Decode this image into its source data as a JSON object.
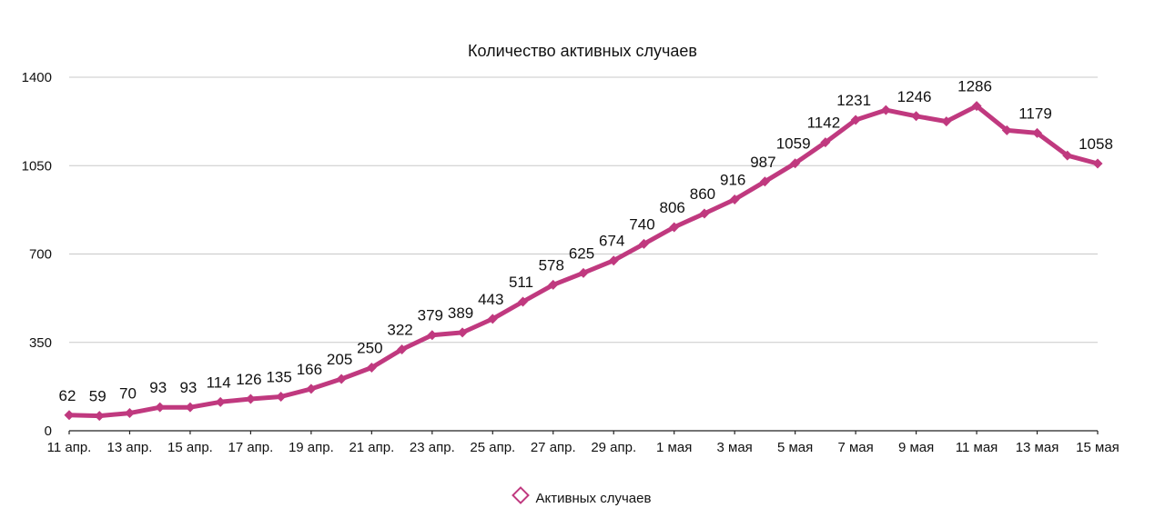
{
  "chart_data": {
    "type": "line",
    "title": "Количество активных случаев",
    "xlabel": "",
    "ylabel": "",
    "ylim": [
      0,
      1400
    ],
    "y_ticks": [
      0,
      350,
      700,
      1050,
      1400
    ],
    "grid": true,
    "legend_position": "bottom",
    "series_color": "#c0397f",
    "x": [
      "11 апр.",
      "12 апр.",
      "13 апр.",
      "14 апр.",
      "15 апр.",
      "16 апр.",
      "17 апр.",
      "18 апр.",
      "19 апр.",
      "20 апр.",
      "21 апр.",
      "22 апр.",
      "23 апр.",
      "24 апр.",
      "25 апр.",
      "26 апр.",
      "27 апр.",
      "28 апр.",
      "29 апр.",
      "30 апр.",
      "1 мая",
      "2 мая",
      "3 мая",
      "4 мая",
      "5 мая",
      "6 мая",
      "7 мая",
      "8 мая",
      "9 мая",
      "10 мая",
      "11 мая",
      "12 мая",
      "13 мая",
      "14 мая",
      "15 мая"
    ],
    "x_tick_labels": [
      "11 апр.",
      "13 апр.",
      "15 апр.",
      "17 апр.",
      "19 апр.",
      "21 апр.",
      "23 апр.",
      "25 апр.",
      "27 апр.",
      "29 апр.",
      "1 мая",
      "3 мая",
      "5 мая",
      "7 мая",
      "9 мая",
      "11 мая",
      "13 мая",
      "15 мая"
    ],
    "series": [
      {
        "name": "Активных случаев",
        "values": [
          62,
          59,
          70,
          93,
          93,
          114,
          126,
          135,
          166,
          205,
          250,
          322,
          379,
          389,
          443,
          511,
          578,
          625,
          674,
          740,
          806,
          860,
          916,
          987,
          1059,
          1142,
          1231,
          1270,
          1246,
          1225,
          1286,
          1190,
          1179,
          1090,
          1058
        ],
        "data_labels": [
          "62",
          "59",
          "70",
          "93",
          "93",
          "114",
          "126",
          "135",
          "166",
          "205",
          "250",
          "322",
          "379",
          "389",
          "443",
          "511",
          "578",
          "625",
          "674",
          "740",
          "806",
          "860",
          "916",
          "987",
          "1059",
          "1142",
          "1231",
          "",
          "1246",
          "",
          "1286",
          "",
          "1179",
          "",
          "1058"
        ]
      }
    ]
  }
}
